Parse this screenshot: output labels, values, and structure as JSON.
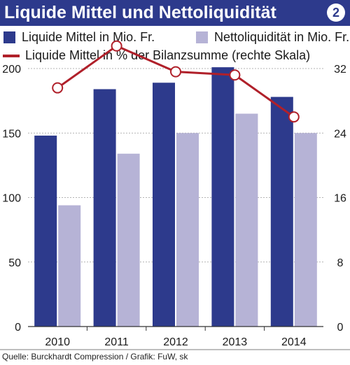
{
  "header": {
    "title": "Liquide Mittel und Nettoliquidität",
    "badge": "2"
  },
  "legend": {
    "series1": "Liquide Mittel in Mio. Fr.",
    "series2": "Nettoliquidität in Mio. Fr.",
    "series3": "Liquide Mittel in % der Bilanzsumme (rechte Skala)"
  },
  "source": "Quelle: Burckhardt Compression / Grafik: FuW, sk",
  "colors": {
    "header": "#2d3a8c",
    "bar1": "#2d3a8c",
    "bar2": "#b6b3d6",
    "line": "#b0202a"
  },
  "chart_data": {
    "type": "bar",
    "categories": [
      "2010",
      "2011",
      "2012",
      "2013",
      "2014"
    ],
    "series": [
      {
        "name": "Liquide Mittel in Mio. Fr.",
        "type": "bar",
        "axis": "left",
        "values": [
          148,
          184,
          189,
          201,
          178
        ]
      },
      {
        "name": "Nettoliquidität in Mio. Fr.",
        "type": "bar",
        "axis": "left",
        "values": [
          94,
          134,
          150,
          165,
          150
        ]
      },
      {
        "name": "Liquide Mittel in % der Bilanzsumme (rechte Skala)",
        "type": "line",
        "axis": "right",
        "values": [
          29.6,
          34.8,
          31.6,
          31.2,
          26
        ]
      }
    ],
    "y_left": {
      "ticks": [
        0,
        50,
        100,
        150,
        200
      ],
      "range": [
        0,
        200
      ]
    },
    "y_right": {
      "ticks": [
        0,
        8,
        16,
        24,
        32
      ],
      "range": [
        0,
        32
      ]
    },
    "grid": true
  }
}
